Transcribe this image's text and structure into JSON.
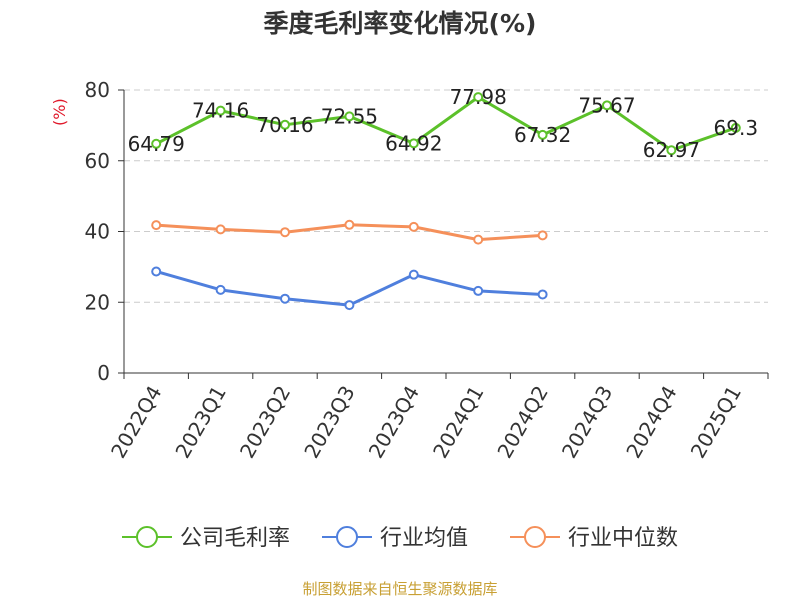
{
  "chart_data": {
    "type": "line",
    "title": "季度毛利率变化情况(%)",
    "unit_label": "(%)",
    "categories": [
      "2022Q4",
      "2023Q1",
      "2023Q2",
      "2023Q3",
      "2023Q4",
      "2024Q1",
      "2024Q2",
      "2024Q3",
      "2024Q4",
      "2025Q1"
    ],
    "yticks": [
      0,
      20,
      40,
      60,
      80
    ],
    "ylim": [
      0,
      80
    ],
    "grid": true,
    "legend_position": "bottom",
    "series": [
      {
        "name": "公司毛利率",
        "color": "#5cc12a",
        "values": [
          64.79,
          74.16,
          70.16,
          72.55,
          64.92,
          77.98,
          67.32,
          75.67,
          62.97,
          69.3
        ],
        "labels": [
          "64.79",
          "74.16",
          "70.16",
          "72.55",
          "64.92",
          "77.98",
          "67.32",
          "75.67",
          "62.97",
          "69.3"
        ]
      },
      {
        "name": "行业均值",
        "color": "#4f7fdd",
        "values": [
          28.7,
          23.5,
          21.0,
          19.2,
          27.8,
          23.2,
          22.2,
          null,
          null,
          null
        ]
      },
      {
        "name": "行业中位数",
        "color": "#f5905a",
        "values": [
          41.8,
          40.6,
          39.8,
          41.9,
          41.3,
          37.7,
          38.9,
          null,
          null,
          null
        ]
      }
    ]
  },
  "source": "制图数据来自恒生聚源数据库"
}
